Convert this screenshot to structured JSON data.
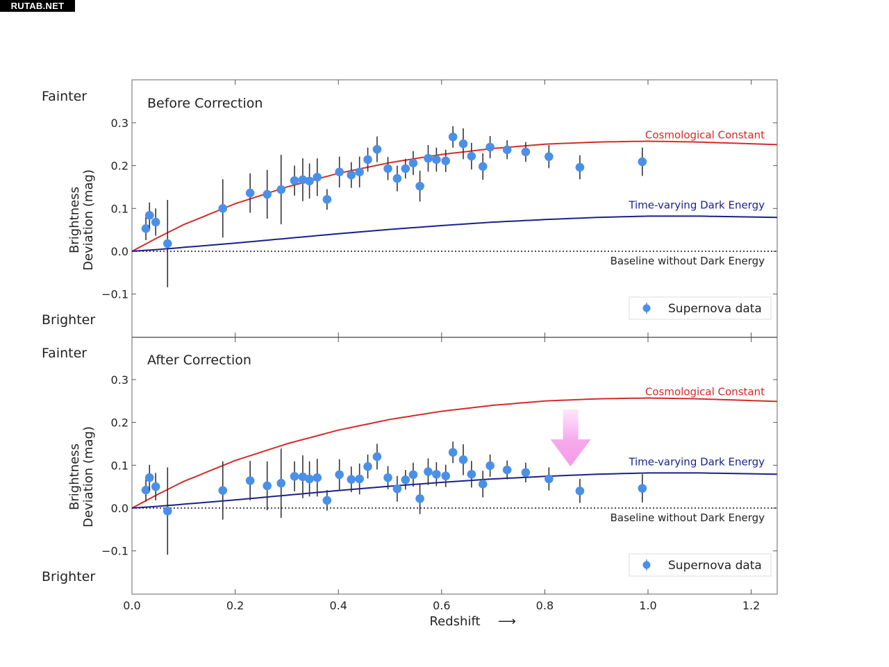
{
  "watermark": "RUTAB.NET",
  "colors": {
    "cosmological_constant": "#d42a2a",
    "time_varying": "#1a1f8c",
    "baseline": "#333333",
    "data_point": "#4a90e8",
    "error_bar": "#333333",
    "arrow": "#f59fe8"
  },
  "labels": {
    "fainter": "Fainter",
    "brighter": "Brighter",
    "ylabel_line1": "Brightness",
    "ylabel_line2": "Deviation (mag)",
    "xlabel": "Redshift",
    "x_arrow": "⟶",
    "cosmological_constant": "Cosmological Constant",
    "time_varying": "Time-varying Dark Energy",
    "baseline": "Baseline without Dark Energy",
    "legend": "Supernova data"
  },
  "chart_data": [
    {
      "type": "scatter",
      "title": "Before Correction",
      "xlabel": "Redshift",
      "ylabel": "Brightness Deviation (mag)",
      "xlim": [
        0.0,
        1.25
      ],
      "ylim": [
        -0.2,
        0.4
      ],
      "xticks": [
        "0.0",
        "0.2",
        "0.4",
        "0.6",
        "0.8",
        "1.0",
        "1.2"
      ],
      "yticks": [
        "−0.1",
        "0.0",
        "0.1",
        "0.2",
        "0.3"
      ],
      "ytick_values": [
        -0.1,
        0.0,
        0.1,
        0.2,
        0.3
      ],
      "legend": "bottom-right",
      "series": [
        {
          "name": "Supernova data",
          "kind": "errorbar",
          "x": [
            0.027,
            0.034,
            0.046,
            0.069,
            0.176,
            0.229,
            0.262,
            0.289,
            0.315,
            0.331,
            0.344,
            0.359,
            0.378,
            0.402,
            0.425,
            0.441,
            0.457,
            0.475,
            0.496,
            0.514,
            0.53,
            0.545,
            0.558,
            0.574,
            0.59,
            0.608,
            0.622,
            0.642,
            0.658,
            0.68,
            0.694,
            0.727,
            0.763,
            0.808,
            0.868,
            0.989
          ],
          "y": [
            0.053,
            0.084,
            0.068,
            0.018,
            0.1,
            0.136,
            0.133,
            0.144,
            0.165,
            0.167,
            0.164,
            0.173,
            0.121,
            0.185,
            0.178,
            0.185,
            0.214,
            0.238,
            0.193,
            0.17,
            0.193,
            0.206,
            0.152,
            0.217,
            0.214,
            0.211,
            0.267,
            0.251,
            0.222,
            0.198,
            0.243,
            0.237,
            0.232,
            0.221,
            0.196,
            0.209
          ],
          "yerr": [
            0.027,
            0.03,
            0.032,
            0.102,
            0.068,
            0.046,
            0.057,
            0.081,
            0.035,
            0.05,
            0.041,
            0.044,
            0.024,
            0.036,
            0.03,
            0.036,
            0.028,
            0.03,
            0.027,
            0.03,
            0.023,
            0.028,
            0.036,
            0.031,
            0.028,
            0.026,
            0.025,
            0.036,
            0.031,
            0.031,
            0.026,
            0.022,
            0.023,
            0.027,
            0.028,
            0.033
          ]
        },
        {
          "name": "Cosmological Constant",
          "kind": "line",
          "model": "cosmological_constant"
        },
        {
          "name": "Time-varying Dark Energy",
          "kind": "line",
          "model": "time_varying"
        },
        {
          "name": "Baseline without Dark Energy",
          "kind": "dotted",
          "y": 0.0
        }
      ]
    },
    {
      "type": "scatter",
      "title": "After Correction",
      "xlabel": "Redshift",
      "ylabel": "Brightness Deviation (mag)",
      "xlim": [
        0.0,
        1.25
      ],
      "ylim": [
        -0.2,
        0.4
      ],
      "xticks": [
        "0.0",
        "0.2",
        "0.4",
        "0.6",
        "0.8",
        "1.0",
        "1.2"
      ],
      "yticks": [
        "−0.1",
        "0.0",
        "0.1",
        "0.2",
        "0.3"
      ],
      "ytick_values": [
        -0.1,
        0.0,
        0.1,
        0.2,
        0.3
      ],
      "legend": "bottom-right",
      "annotation": "downward arrow at z≈0.85 indicating shift toward time-varying dark energy",
      "series": [
        {
          "name": "Supernova data",
          "kind": "errorbar",
          "x": [
            0.027,
            0.034,
            0.046,
            0.069,
            0.176,
            0.229,
            0.262,
            0.289,
            0.315,
            0.331,
            0.344,
            0.359,
            0.378,
            0.402,
            0.425,
            0.441,
            0.457,
            0.475,
            0.496,
            0.514,
            0.53,
            0.545,
            0.558,
            0.574,
            0.59,
            0.608,
            0.622,
            0.642,
            0.658,
            0.68,
            0.694,
            0.727,
            0.763,
            0.808,
            0.868,
            0.989
          ],
          "y": [
            0.042,
            0.071,
            0.05,
            -0.007,
            0.041,
            0.064,
            0.052,
            0.058,
            0.074,
            0.073,
            0.068,
            0.071,
            0.018,
            0.078,
            0.067,
            0.068,
            0.097,
            0.12,
            0.071,
            0.045,
            0.066,
            0.078,
            0.022,
            0.085,
            0.079,
            0.075,
            0.13,
            0.113,
            0.079,
            0.056,
            0.099,
            0.089,
            0.083,
            0.068,
            0.04,
            0.046
          ],
          "yerr": [
            0.027,
            0.03,
            0.032,
            0.102,
            0.068,
            0.046,
            0.057,
            0.081,
            0.035,
            0.05,
            0.041,
            0.044,
            0.024,
            0.036,
            0.03,
            0.036,
            0.028,
            0.03,
            0.027,
            0.03,
            0.023,
            0.028,
            0.036,
            0.031,
            0.028,
            0.026,
            0.025,
            0.036,
            0.031,
            0.031,
            0.026,
            0.022,
            0.023,
            0.027,
            0.028,
            0.033
          ]
        },
        {
          "name": "Cosmological Constant",
          "kind": "line",
          "model": "cosmological_constant"
        },
        {
          "name": "Time-varying Dark Energy",
          "kind": "line",
          "model": "time_varying"
        },
        {
          "name": "Baseline without Dark Energy",
          "kind": "dotted",
          "y": 0.0
        }
      ]
    }
  ],
  "model_curves": {
    "cosmological_constant": {
      "x": [
        0,
        0.05,
        0.1,
        0.2,
        0.3,
        0.4,
        0.5,
        0.6,
        0.7,
        0.8,
        0.9,
        1.0,
        1.1,
        1.25
      ],
      "y": [
        0,
        0.032,
        0.062,
        0.111,
        0.15,
        0.182,
        0.207,
        0.226,
        0.24,
        0.25,
        0.255,
        0.257,
        0.255,
        0.249
      ]
    },
    "time_varying": {
      "x": [
        0,
        0.05,
        0.1,
        0.2,
        0.3,
        0.4,
        0.5,
        0.6,
        0.7,
        0.8,
        0.9,
        1.0,
        1.1,
        1.25
      ],
      "y": [
        0,
        0.004,
        0.009,
        0.019,
        0.03,
        0.041,
        0.051,
        0.06,
        0.068,
        0.074,
        0.079,
        0.082,
        0.082,
        0.079
      ]
    }
  }
}
